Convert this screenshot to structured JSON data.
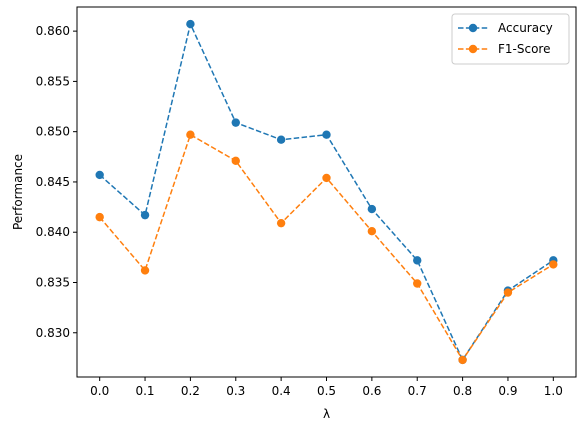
{
  "chart_data": {
    "type": "line",
    "title": "",
    "xlabel": "λ",
    "ylabel": "Performance",
    "x": [
      0.0,
      0.1,
      0.2,
      0.3,
      0.4,
      0.5,
      0.6,
      0.7,
      0.8,
      0.9,
      1.0
    ],
    "x_tick_labels": [
      "0.0",
      "0.1",
      "0.2",
      "0.3",
      "0.4",
      "0.5",
      "0.6",
      "0.7",
      "0.8",
      "0.9",
      "1.0"
    ],
    "y_ticks": [
      0.83,
      0.835,
      0.84,
      0.845,
      0.85,
      0.855,
      0.86
    ],
    "y_tick_labels": [
      "0.830",
      "0.835",
      "0.840",
      "0.845",
      "0.850",
      "0.855",
      "0.860"
    ],
    "xlim": [
      -0.05,
      1.05
    ],
    "ylim": [
      0.8256,
      0.8624
    ],
    "grid": false,
    "legend_position": "top-right",
    "line_style": "dashed",
    "marker": "circle",
    "series": [
      {
        "name": "Accuracy",
        "color": "#1f77b4",
        "values": [
          0.8457,
          0.8417,
          0.8607,
          0.8509,
          0.8492,
          0.8497,
          0.8423,
          0.8372,
          0.8273,
          0.8342,
          0.8372
        ]
      },
      {
        "name": "F1-Score",
        "color": "#ff7f0e",
        "values": [
          0.8415,
          0.8362,
          0.8497,
          0.8471,
          0.8409,
          0.8454,
          0.8401,
          0.8349,
          0.8273,
          0.834,
          0.8368
        ]
      }
    ]
  }
}
